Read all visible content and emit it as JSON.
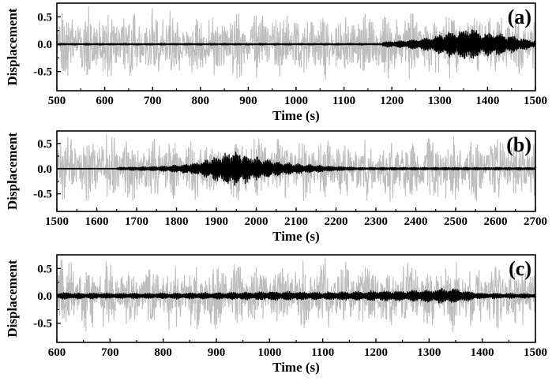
{
  "chart_data": [
    {
      "type": "line",
      "panel_label": "(a)",
      "xlabel": "Time (s)",
      "ylabel": "Displacement",
      "xlim": [
        500,
        1500
      ],
      "ylim": [
        -0.85,
        0.75
      ],
      "xticks": [
        "500",
        "600",
        "700",
        "800",
        "900",
        "1000",
        "1100",
        "1200",
        "1300",
        "1400",
        "1500"
      ],
      "xtick_values": [
        500,
        600,
        700,
        800,
        900,
        1000,
        1100,
        1200,
        1300,
        1400,
        1500
      ],
      "yticks": [
        "-0.5",
        "0.0",
        "0.5"
      ],
      "ytick_values": [
        -0.5,
        0,
        0.5
      ],
      "series": [
        {
          "color": "#bdbdbd",
          "style": "noise",
          "amplitude": 0.55,
          "envelope": []
        },
        {
          "color": "#000000",
          "style": "packet",
          "amplitude": 0.02,
          "envelope": [
            [
              1180,
              0.03
            ],
            [
              1230,
              0.06
            ],
            [
              1280,
              0.12
            ],
            [
              1310,
              0.22
            ],
            [
              1340,
              0.26
            ],
            [
              1365,
              0.34
            ],
            [
              1390,
              0.2
            ],
            [
              1420,
              0.22
            ],
            [
              1450,
              0.15
            ],
            [
              1480,
              0.08
            ],
            [
              1500,
              0.05
            ]
          ]
        }
      ]
    },
    {
      "type": "line",
      "panel_label": "(b)",
      "xlabel": "Time (s)",
      "ylabel": "Displacement",
      "xlim": [
        1500,
        2700
      ],
      "ylim": [
        -0.85,
        0.75
      ],
      "xticks": [
        "1500",
        "1600",
        "1700",
        "1800",
        "1900",
        "2000",
        "2100",
        "2200",
        "2300",
        "2400",
        "2500",
        "2600",
        "2700"
      ],
      "xtick_values": [
        1500,
        1600,
        1700,
        1800,
        1900,
        2000,
        2100,
        2200,
        2300,
        2400,
        2500,
        2600,
        2700
      ],
      "yticks": [
        "-0.5",
        "0.0",
        "0.5"
      ],
      "ytick_values": [
        -0.5,
        0,
        0.5
      ],
      "series": [
        {
          "color": "#bdbdbd",
          "style": "noise",
          "amplitude": 0.58,
          "envelope": []
        },
        {
          "color": "#000000",
          "style": "packet",
          "amplitude": 0.01,
          "envelope": [
            [
              1650,
              0.02
            ],
            [
              1750,
              0.04
            ],
            [
              1800,
              0.07
            ],
            [
              1850,
              0.12
            ],
            [
              1900,
              0.26
            ],
            [
              1940,
              0.38
            ],
            [
              1975,
              0.3
            ],
            [
              2000,
              0.24
            ],
            [
              2050,
              0.15
            ],
            [
              2100,
              0.1
            ],
            [
              2150,
              0.07
            ],
            [
              2200,
              0.04
            ],
            [
              2260,
              0.02
            ]
          ]
        }
      ]
    },
    {
      "type": "line",
      "panel_label": "(c)",
      "xlabel": "Time (s)",
      "ylabel": "Displacement",
      "xlim": [
        600,
        1500
      ],
      "ylim": [
        -0.85,
        0.75
      ],
      "xticks": [
        "600",
        "700",
        "800",
        "900",
        "1000",
        "1100",
        "1200",
        "1300",
        "1400",
        "1500"
      ],
      "xtick_values": [
        600,
        700,
        800,
        900,
        1000,
        1100,
        1200,
        1300,
        1400,
        1500
      ],
      "yticks": [
        "-0.5",
        "0.0",
        "0.5"
      ],
      "ytick_values": [
        -0.5,
        0,
        0.5
      ],
      "series": [
        {
          "color": "#bdbdbd",
          "style": "noise",
          "amplitude": 0.55,
          "envelope": []
        },
        {
          "color": "#000000",
          "style": "packet",
          "amplitude": 0.03,
          "envelope": [
            [
              600,
              0.04
            ],
            [
              700,
              0.03
            ],
            [
              800,
              0.03
            ],
            [
              900,
              0.04
            ],
            [
              1000,
              0.06
            ],
            [
              1050,
              0.06
            ],
            [
              1100,
              0.05
            ],
            [
              1200,
              0.07
            ],
            [
              1250,
              0.08
            ],
            [
              1300,
              0.1
            ],
            [
              1340,
              0.13
            ],
            [
              1370,
              0.08
            ],
            [
              1400,
              0.03
            ],
            [
              1500,
              0.02
            ]
          ]
        }
      ]
    }
  ]
}
